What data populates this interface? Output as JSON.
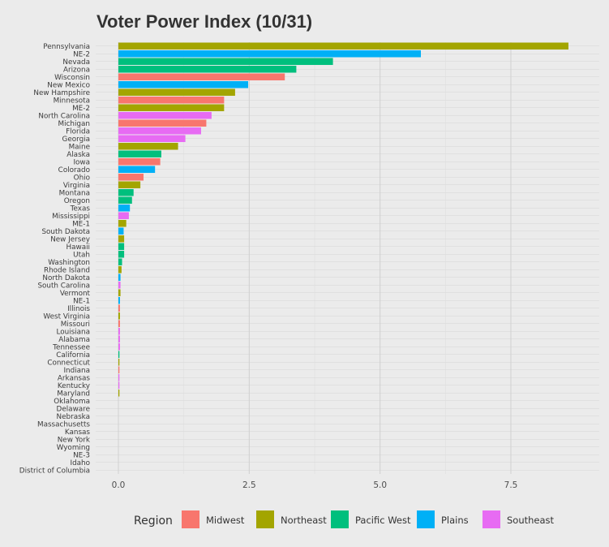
{
  "chart_data": {
    "type": "bar",
    "orientation": "horizontal",
    "title": "Voter Power Index (10/31)",
    "xlabel": "",
    "ylabel": "",
    "xlim": [
      -0.9,
      8.8
    ],
    "x_ticks": [
      0,
      2.5,
      5,
      7.5
    ],
    "x_tick_labels": [
      "0.0",
      "2.5",
      "5.0",
      "7.5"
    ],
    "grid": true,
    "legend_position": "bottom",
    "legend": {
      "title": "Region",
      "entries": [
        {
          "name": "Midwest",
          "color": "#F8766D"
        },
        {
          "name": "Northeast",
          "color": "#A3A500"
        },
        {
          "name": "Pacific West",
          "color": "#00BF7D"
        },
        {
          "name": "Plains",
          "color": "#00B0F6"
        },
        {
          "name": "Southeast",
          "color": "#E76BF3"
        }
      ]
    },
    "bars": [
      {
        "label": "Pennsylvania",
        "value": 8.6,
        "region": "Northeast"
      },
      {
        "label": "NE-2",
        "value": 5.78,
        "region": "Plains"
      },
      {
        "label": "Nevada",
        "value": 4.1,
        "region": "Pacific West"
      },
      {
        "label": "Arizona",
        "value": 3.4,
        "region": "Pacific West"
      },
      {
        "label": "Wisconsin",
        "value": 3.18,
        "region": "Midwest"
      },
      {
        "label": "New Mexico",
        "value": 2.48,
        "region": "Plains"
      },
      {
        "label": "New Hampshire",
        "value": 2.23,
        "region": "Northeast"
      },
      {
        "label": "Minnesota",
        "value": 2.02,
        "region": "Midwest"
      },
      {
        "label": "ME-2",
        "value": 2.02,
        "region": "Northeast"
      },
      {
        "label": "North Carolina",
        "value": 1.78,
        "region": "Southeast"
      },
      {
        "label": "Michigan",
        "value": 1.68,
        "region": "Midwest"
      },
      {
        "label": "Florida",
        "value": 1.58,
        "region": "Southeast"
      },
      {
        "label": "Georgia",
        "value": 1.28,
        "region": "Southeast"
      },
      {
        "label": "Maine",
        "value": 1.14,
        "region": "Northeast"
      },
      {
        "label": "Alaska",
        "value": 0.82,
        "region": "Pacific West"
      },
      {
        "label": "Iowa",
        "value": 0.8,
        "region": "Midwest"
      },
      {
        "label": "Colorado",
        "value": 0.7,
        "region": "Plains"
      },
      {
        "label": "Ohio",
        "value": 0.48,
        "region": "Midwest"
      },
      {
        "label": "Virginia",
        "value": 0.42,
        "region": "Northeast"
      },
      {
        "label": "Montana",
        "value": 0.29,
        "region": "Pacific West"
      },
      {
        "label": "Oregon",
        "value": 0.26,
        "region": "Pacific West"
      },
      {
        "label": "Texas",
        "value": 0.22,
        "region": "Plains"
      },
      {
        "label": "Mississippi",
        "value": 0.2,
        "region": "Southeast"
      },
      {
        "label": "ME-1",
        "value": 0.15,
        "region": "Northeast"
      },
      {
        "label": "South Dakota",
        "value": 0.1,
        "region": "Plains"
      },
      {
        "label": "New Jersey",
        "value": 0.11,
        "region": "Northeast"
      },
      {
        "label": "Hawaii",
        "value": 0.11,
        "region": "Pacific West"
      },
      {
        "label": "Utah",
        "value": 0.11,
        "region": "Pacific West"
      },
      {
        "label": "Washington",
        "value": 0.07,
        "region": "Pacific West"
      },
      {
        "label": "Rhode Island",
        "value": 0.06,
        "region": "Northeast"
      },
      {
        "label": "North Dakota",
        "value": 0.04,
        "region": "Plains"
      },
      {
        "label": "South Carolina",
        "value": 0.04,
        "region": "Southeast"
      },
      {
        "label": "Vermont",
        "value": 0.04,
        "region": "Northeast"
      },
      {
        "label": "NE-1",
        "value": 0.03,
        "region": "Plains"
      },
      {
        "label": "Illinois",
        "value": 0.03,
        "region": "Midwest"
      },
      {
        "label": "West Virginia",
        "value": 0.03,
        "region": "Northeast"
      },
      {
        "label": "Missouri",
        "value": 0.03,
        "region": "Midwest"
      },
      {
        "label": "Louisiana",
        "value": 0.03,
        "region": "Southeast"
      },
      {
        "label": "Alabama",
        "value": 0.03,
        "region": "Southeast"
      },
      {
        "label": "Tennessee",
        "value": 0.03,
        "region": "Southeast"
      },
      {
        "label": "California",
        "value": 0.02,
        "region": "Pacific West"
      },
      {
        "label": "Connecticut",
        "value": 0.02,
        "region": "Northeast"
      },
      {
        "label": "Indiana",
        "value": 0.02,
        "region": "Midwest"
      },
      {
        "label": "Arkansas",
        "value": 0.02,
        "region": "Southeast"
      },
      {
        "label": "Kentucky",
        "value": 0.02,
        "region": "Southeast"
      },
      {
        "label": "Maryland",
        "value": 0.02,
        "region": "Northeast"
      },
      {
        "label": "Oklahoma",
        "value": 0.0,
        "region": "Plains"
      },
      {
        "label": "Delaware",
        "value": 0.0,
        "region": "Northeast"
      },
      {
        "label": "Nebraska",
        "value": 0.0,
        "region": "Plains"
      },
      {
        "label": "Massachusetts",
        "value": 0.0,
        "region": "Northeast"
      },
      {
        "label": "Kansas",
        "value": 0.0,
        "region": "Plains"
      },
      {
        "label": "New York",
        "value": 0.0,
        "region": "Northeast"
      },
      {
        "label": "Wyoming",
        "value": 0.0,
        "region": "Pacific West"
      },
      {
        "label": "NE-3",
        "value": 0.0,
        "region": "Plains"
      },
      {
        "label": "Idaho",
        "value": 0.0,
        "region": "Pacific West"
      },
      {
        "label": "District of Columbia",
        "value": 0.0,
        "region": "Northeast"
      }
    ]
  }
}
